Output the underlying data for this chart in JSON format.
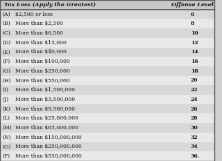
{
  "title_left": "Tax Loss (Apply the Greatest)",
  "title_right": "Offense Level",
  "rows": [
    [
      "(A)",
      "$2,500 or less",
      "6"
    ],
    [
      "(B)",
      "More than $2,500",
      "8"
    ],
    [
      "(C)",
      "More than $6,500",
      "10"
    ],
    [
      "(D)",
      "More than $15,000",
      "12"
    ],
    [
      "(E)",
      "More than $40,000",
      "14"
    ],
    [
      "(F)",
      "More than $100,000",
      "16"
    ],
    [
      "(G)",
      "More than $250,000",
      "18"
    ],
    [
      "(H)",
      "More than $550,000",
      "20"
    ],
    [
      "(I)",
      "More than $1,500,000",
      "22"
    ],
    [
      "(J)",
      "More than $3,500,000",
      "24"
    ],
    [
      "(K)",
      "More than $9,500,000",
      "26"
    ],
    [
      "(L)",
      "More than $25,000,000",
      "28"
    ],
    [
      "(M)",
      "More than $65,000,000",
      "30"
    ],
    [
      "(N)",
      "More than $150,000,000",
      "32"
    ],
    [
      "(O)",
      "More than $250,000,000",
      "34"
    ],
    [
      "(P)",
      "More than $550,000,000",
      "36."
    ]
  ],
  "bg_color_header": "#c8c8c8",
  "bg_color_odd": "#d8d8d8",
  "bg_color_even": "#e8e8e8",
  "border_color": "#555555",
  "text_color": "#111111",
  "fig_bg": "#d0d0d0"
}
